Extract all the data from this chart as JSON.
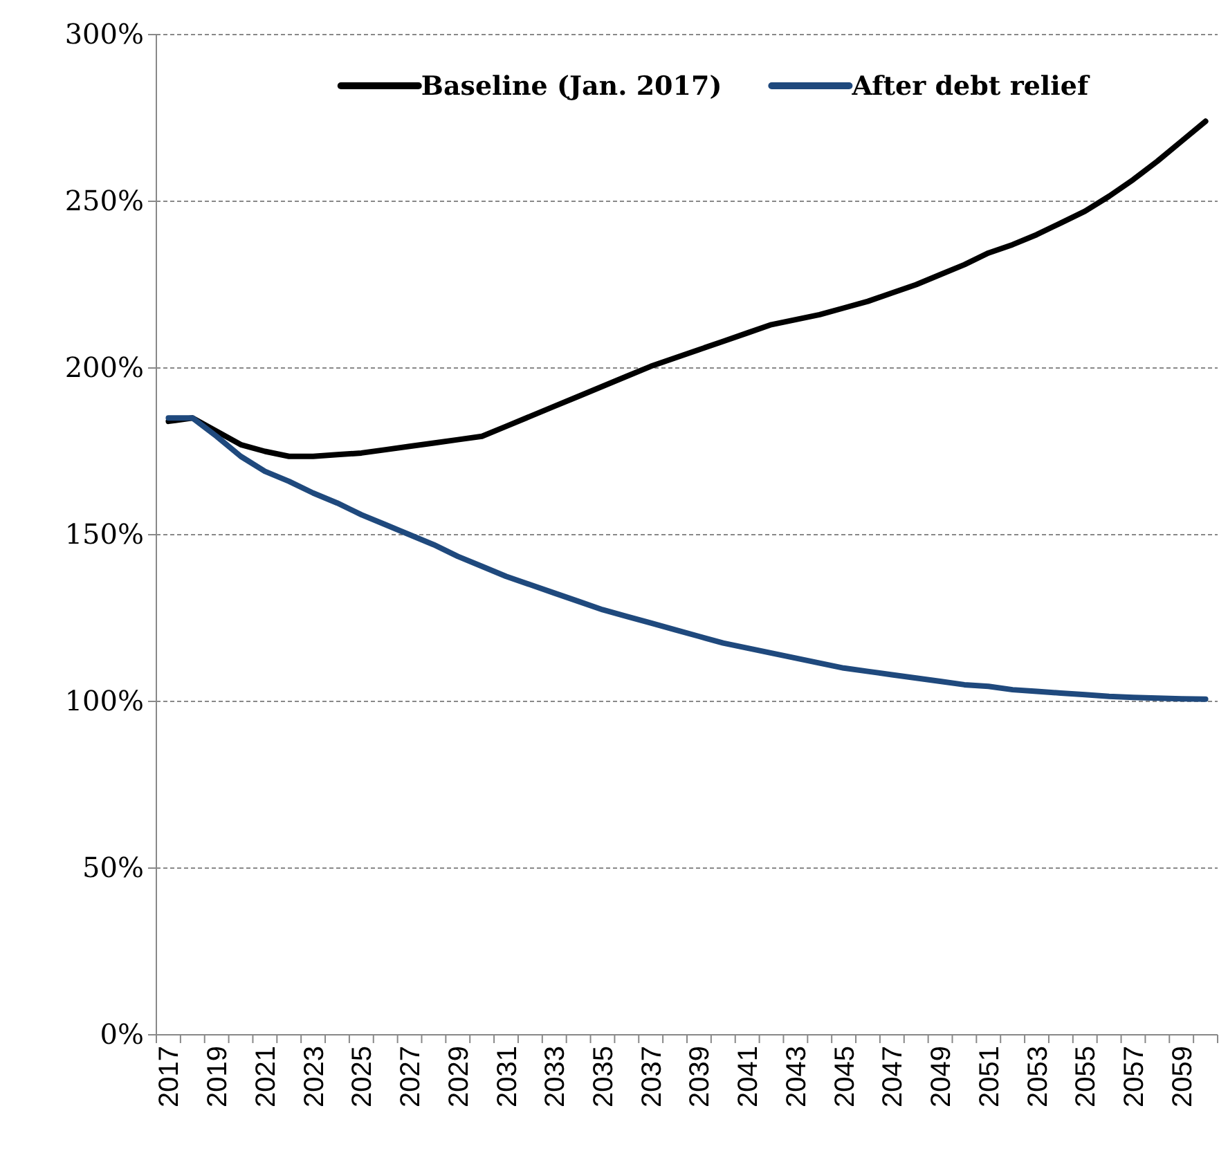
{
  "chart_data": {
    "type": "line",
    "categories": [
      "2017",
      null,
      "2019",
      null,
      "2021",
      null,
      "2023",
      null,
      "2025",
      null,
      "2027",
      null,
      "2029",
      null,
      "2031",
      null,
      "2033",
      null,
      "2035",
      null,
      "2037",
      null,
      "2039",
      null,
      "2041",
      null,
      "2043",
      null,
      "2045",
      null,
      "2047",
      null,
      "2049",
      null,
      "2051",
      null,
      "2053",
      null,
      "2055",
      null,
      "2057",
      null,
      "2059",
      null
    ],
    "series": [
      {
        "name": "Baseline (Jan. 2017)",
        "color": "#000000",
        "values": [
          184,
          185,
          181,
          177,
          175,
          173.5,
          173.5,
          174,
          174.5,
          175.5,
          176.5,
          177.5,
          178.5,
          179.5,
          182.5,
          185.5,
          188.5,
          191.5,
          194.5,
          197.5,
          200.5,
          203,
          205.5,
          208,
          210.5,
          213,
          214.5,
          216,
          218,
          220,
          222.5,
          225,
          228,
          231,
          234.5,
          237,
          240,
          243.5,
          247,
          251.5,
          256.5,
          262,
          268,
          274
        ]
      },
      {
        "name": "After debt relief",
        "color": "#1f497d",
        "values": [
          185,
          185,
          179.5,
          173.5,
          169,
          166,
          162.5,
          159.5,
          156,
          153,
          150,
          147,
          143.5,
          140.5,
          137.5,
          135,
          132.5,
          130,
          127.5,
          125.5,
          123.5,
          121.5,
          119.5,
          117.5,
          116,
          114.5,
          113,
          111.5,
          110,
          109,
          108,
          107,
          106,
          105,
          104.5,
          103.5,
          103,
          102.5,
          102,
          101.5,
          101.2,
          101,
          100.8,
          100.7
        ]
      }
    ],
    "ylim": [
      0,
      300
    ],
    "yticks": [
      {
        "value": 0,
        "label": "0%"
      },
      {
        "value": 50,
        "label": "50%"
      },
      {
        "value": 100,
        "label": "100%"
      },
      {
        "value": 150,
        "label": "150%"
      },
      {
        "value": 200,
        "label": "200%"
      },
      {
        "value": 250,
        "label": "250%"
      },
      {
        "value": 300,
        "label": "300%"
      }
    ],
    "grid": "y",
    "legend": "top",
    "marker": "none",
    "line_style": "solid"
  }
}
